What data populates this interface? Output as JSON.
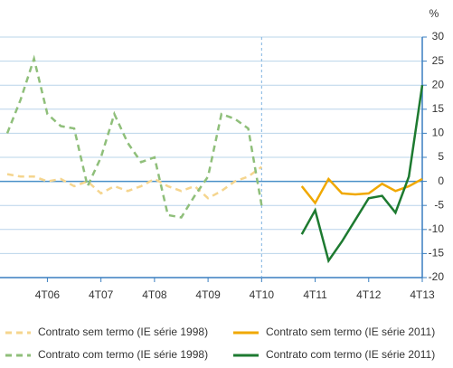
{
  "chart_data": {
    "type": "line",
    "y_unit": "%",
    "categories": [
      null,
      null,
      null,
      "4T06",
      null,
      null,
      null,
      "4T07",
      null,
      null,
      null,
      "4T08",
      null,
      null,
      null,
      "4T09",
      null,
      null,
      null,
      "4T10",
      null,
      null,
      null,
      "4T11",
      null,
      null,
      null,
      "4T12",
      null,
      null,
      null,
      "4T13"
    ],
    "ylim": [
      -20,
      30
    ],
    "yticks": [
      -20,
      -15,
      -10,
      -5,
      0,
      5,
      10,
      15,
      20,
      25,
      30
    ],
    "grid": true,
    "vertical_marker": "4T10",
    "series": [
      {
        "name": "Contrato sem termo (IE série 1998)",
        "color": "#f5d58e",
        "style": "dashed",
        "values": [
          1.5,
          1,
          1,
          0,
          0.5,
          -1,
          0,
          -2.5,
          -1,
          -2,
          -1,
          0.5,
          -1,
          -2,
          -1,
          -3.5,
          -2,
          0,
          1,
          3,
          null,
          null,
          null,
          null,
          null,
          null,
          null,
          null,
          null,
          null,
          null,
          null
        ]
      },
      {
        "name": "Contrato com termo (IE série 1998)",
        "color": "#8fbf7a",
        "style": "dashed",
        "values": [
          10,
          17,
          25.5,
          14,
          11.5,
          11,
          -1,
          5,
          14,
          8,
          4,
          5,
          -7,
          -7.5,
          -3,
          1,
          14,
          13,
          11,
          -5,
          null,
          null,
          null,
          null,
          null,
          null,
          null,
          null,
          null,
          null,
          null,
          null
        ]
      },
      {
        "name": "Contrato sem termo (IE série 2011)",
        "color": "#f0a800",
        "style": "solid",
        "values": [
          null,
          null,
          null,
          null,
          null,
          null,
          null,
          null,
          null,
          null,
          null,
          null,
          null,
          null,
          null,
          null,
          null,
          null,
          null,
          null,
          null,
          null,
          -1,
          -4.5,
          0.5,
          -2.5,
          -2.7,
          -2.5,
          -0.5,
          -2,
          -1,
          0.5
        ]
      },
      {
        "name": "Contrato com termo (IE série 2011)",
        "color": "#1d7a30",
        "style": "solid",
        "values": [
          null,
          null,
          null,
          null,
          null,
          null,
          null,
          null,
          null,
          null,
          null,
          null,
          null,
          null,
          null,
          null,
          null,
          null,
          null,
          null,
          null,
          null,
          -11,
          -6,
          -16.5,
          -12.5,
          -8,
          -3.5,
          -3,
          -6.5,
          1,
          20
        ]
      }
    ]
  }
}
